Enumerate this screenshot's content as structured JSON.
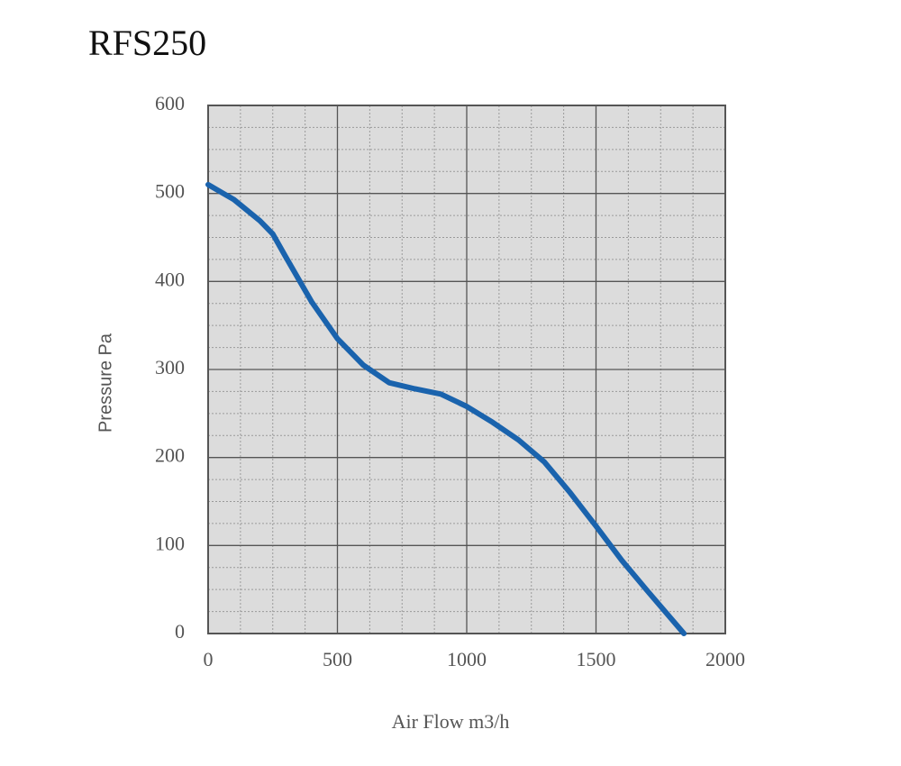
{
  "chart_data": {
    "type": "line",
    "title": "RFS250",
    "x_label": "Air Flow m3/h",
    "y_label": "Pressure Pa",
    "x": [
      0,
      100,
      200,
      250,
      300,
      400,
      500,
      600,
      700,
      800,
      900,
      1000,
      1100,
      1200,
      1300,
      1400,
      1500,
      1600,
      1700,
      1840
    ],
    "series": [
      {
        "color": "#1a63ad",
        "values": [
          510,
          493,
          469,
          454,
          428,
          377,
          335,
          305,
          285,
          278,
          272,
          258,
          240,
          220,
          195,
          160,
          122,
          83,
          48,
          0
        ]
      }
    ],
    "xlim": [
      0,
      2000
    ],
    "ylim": [
      0,
      600
    ],
    "xticks": [
      0,
      500,
      1000,
      1500,
      2000
    ],
    "yticks": [
      0,
      100,
      200,
      300,
      400,
      500,
      600
    ],
    "grid": true
  }
}
